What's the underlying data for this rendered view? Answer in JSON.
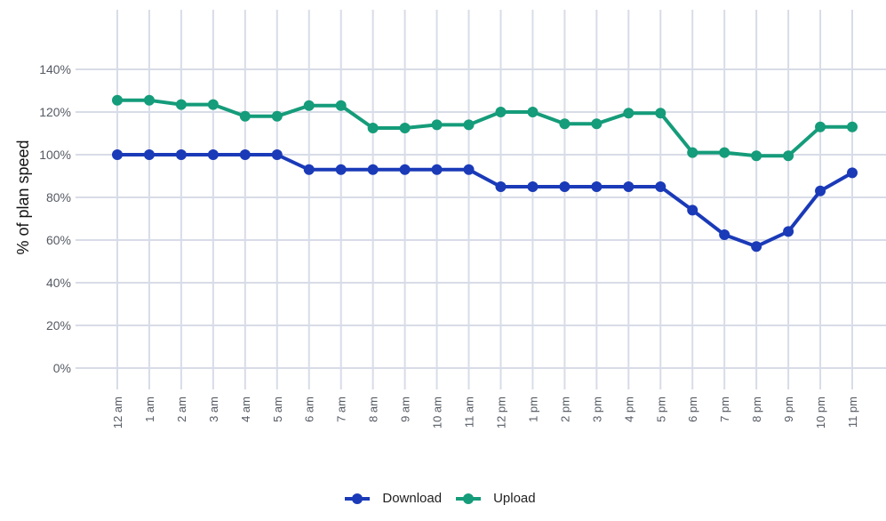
{
  "chart_data": {
    "type": "line",
    "title": "",
    "xlabel": "",
    "ylabel": "% of plan speed",
    "ylim": [
      0,
      140
    ],
    "yticks": [
      "0%",
      "20%",
      "40%",
      "60%",
      "80%",
      "100%",
      "120%",
      "140%"
    ],
    "grid": true,
    "legend_position": "bottom",
    "categories": [
      "12 am",
      "1 am",
      "2 am",
      "3 am",
      "4 am",
      "5 am",
      "6 am",
      "7 am",
      "8 am",
      "9 am",
      "10 am",
      "11 am",
      "12 pm",
      "1 pm",
      "2 pm",
      "3 pm",
      "4 pm",
      "5 pm",
      "6 pm",
      "7 pm",
      "8 pm",
      "9 pm",
      "10 pm",
      "11 pm"
    ],
    "series": [
      {
        "name": "Download",
        "color": "#1a3ab8",
        "values": [
          100,
          100,
          100,
          100,
          100,
          100,
          93,
          93,
          93,
          93,
          93,
          93,
          85,
          85,
          85,
          85,
          85,
          85,
          74,
          62.5,
          57,
          64,
          83,
          91.5
        ]
      },
      {
        "name": "Upload",
        "color": "#159c7a",
        "values": [
          125.5,
          125.5,
          123.5,
          123.5,
          118,
          118,
          123,
          123,
          112.5,
          112.5,
          114,
          114,
          120,
          120,
          114.5,
          114.5,
          119.5,
          119.5,
          101,
          101,
          99.5,
          99.5,
          113,
          113
        ]
      }
    ]
  },
  "legend": {
    "items": [
      {
        "label": "Download",
        "color": "#1a3ab8"
      },
      {
        "label": "Upload",
        "color": "#159c7a"
      }
    ]
  },
  "style": {
    "grid_color": "#d8dce8",
    "axis_text_color": "#555a63"
  }
}
